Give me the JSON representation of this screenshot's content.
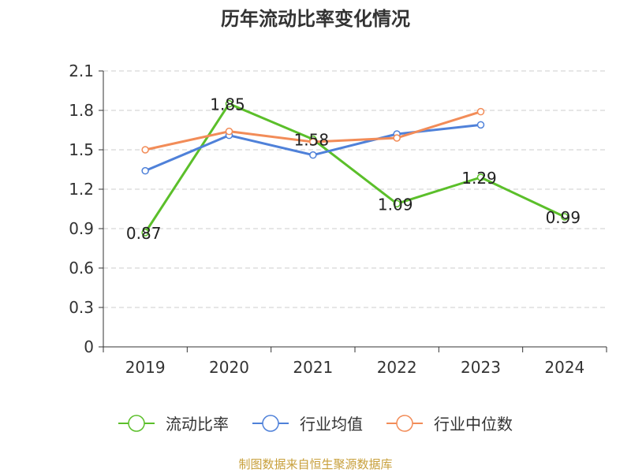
{
  "chart_data": {
    "type": "line",
    "title": "历年流动比率变化情况",
    "categories": [
      "2019",
      "2020",
      "2021",
      "2022",
      "2023",
      "2024"
    ],
    "ylim": [
      0,
      2.1
    ],
    "yticks": [
      "0",
      "0.3",
      "0.6",
      "0.9",
      "1.2",
      "1.5",
      "1.8",
      "2.1"
    ],
    "grid": true,
    "legend_position": "bottom",
    "series": [
      {
        "name": "流动比率",
        "color": "#5bbf2a",
        "values": [
          0.87,
          1.85,
          1.58,
          1.09,
          1.29,
          0.99
        ],
        "labels": [
          "0.87",
          "1.85",
          "1.58",
          "1.09",
          "1.29",
          "0.99"
        ],
        "show_labels": true
      },
      {
        "name": "行业均值",
        "color": "#4f81d9",
        "values": [
          1.34,
          1.61,
          1.46,
          1.62,
          1.69,
          null
        ],
        "show_labels": false
      },
      {
        "name": "行业中位数",
        "color": "#f28c58",
        "values": [
          1.5,
          1.64,
          1.56,
          1.59,
          1.79,
          null
        ],
        "show_labels": false
      }
    ]
  },
  "footer": "制图数据来自恒生聚源数据库"
}
